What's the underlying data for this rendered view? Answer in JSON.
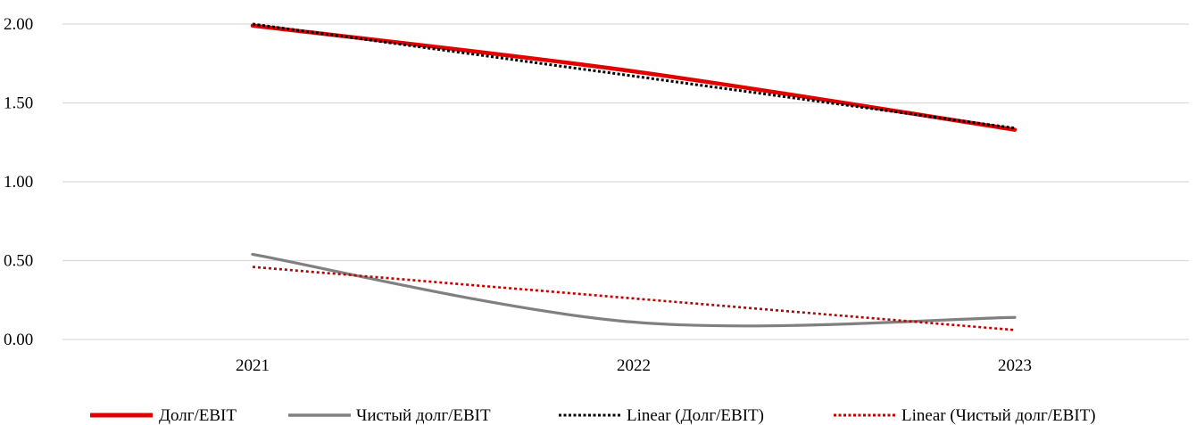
{
  "chart_data": {
    "type": "line",
    "title": "",
    "xlabel": "",
    "ylabel": "",
    "categories": [
      "2021",
      "2022",
      "2023"
    ],
    "ylim": [
      0,
      2
    ],
    "yticks": [
      "0.00",
      "0.50",
      "1.00",
      "1.50",
      "2.00"
    ],
    "ytick_values": [
      0,
      0.5,
      1,
      1.5,
      2
    ],
    "grid": true,
    "legend_position": "bottom",
    "series": [
      {
        "name": "Долг/EBIT",
        "values": [
          1.99,
          1.7,
          1.33
        ],
        "color": "#e00000",
        "style": "solid",
        "smooth": true
      },
      {
        "name": "Чистый долг/EBIT",
        "values": [
          0.54,
          0.11,
          0.14
        ],
        "color": "#808080",
        "style": "solid",
        "smooth": true
      },
      {
        "name": "Linear (Долг/EBIT)",
        "values": [
          2.0,
          1.67,
          1.34
        ],
        "color": "#000000",
        "style": "dotted",
        "smooth": false
      },
      {
        "name": "Linear (Чистый долг/EBIT)",
        "values": [
          0.46,
          0.26,
          0.06
        ],
        "color": "#c00000",
        "style": "dotted",
        "smooth": false
      }
    ]
  }
}
